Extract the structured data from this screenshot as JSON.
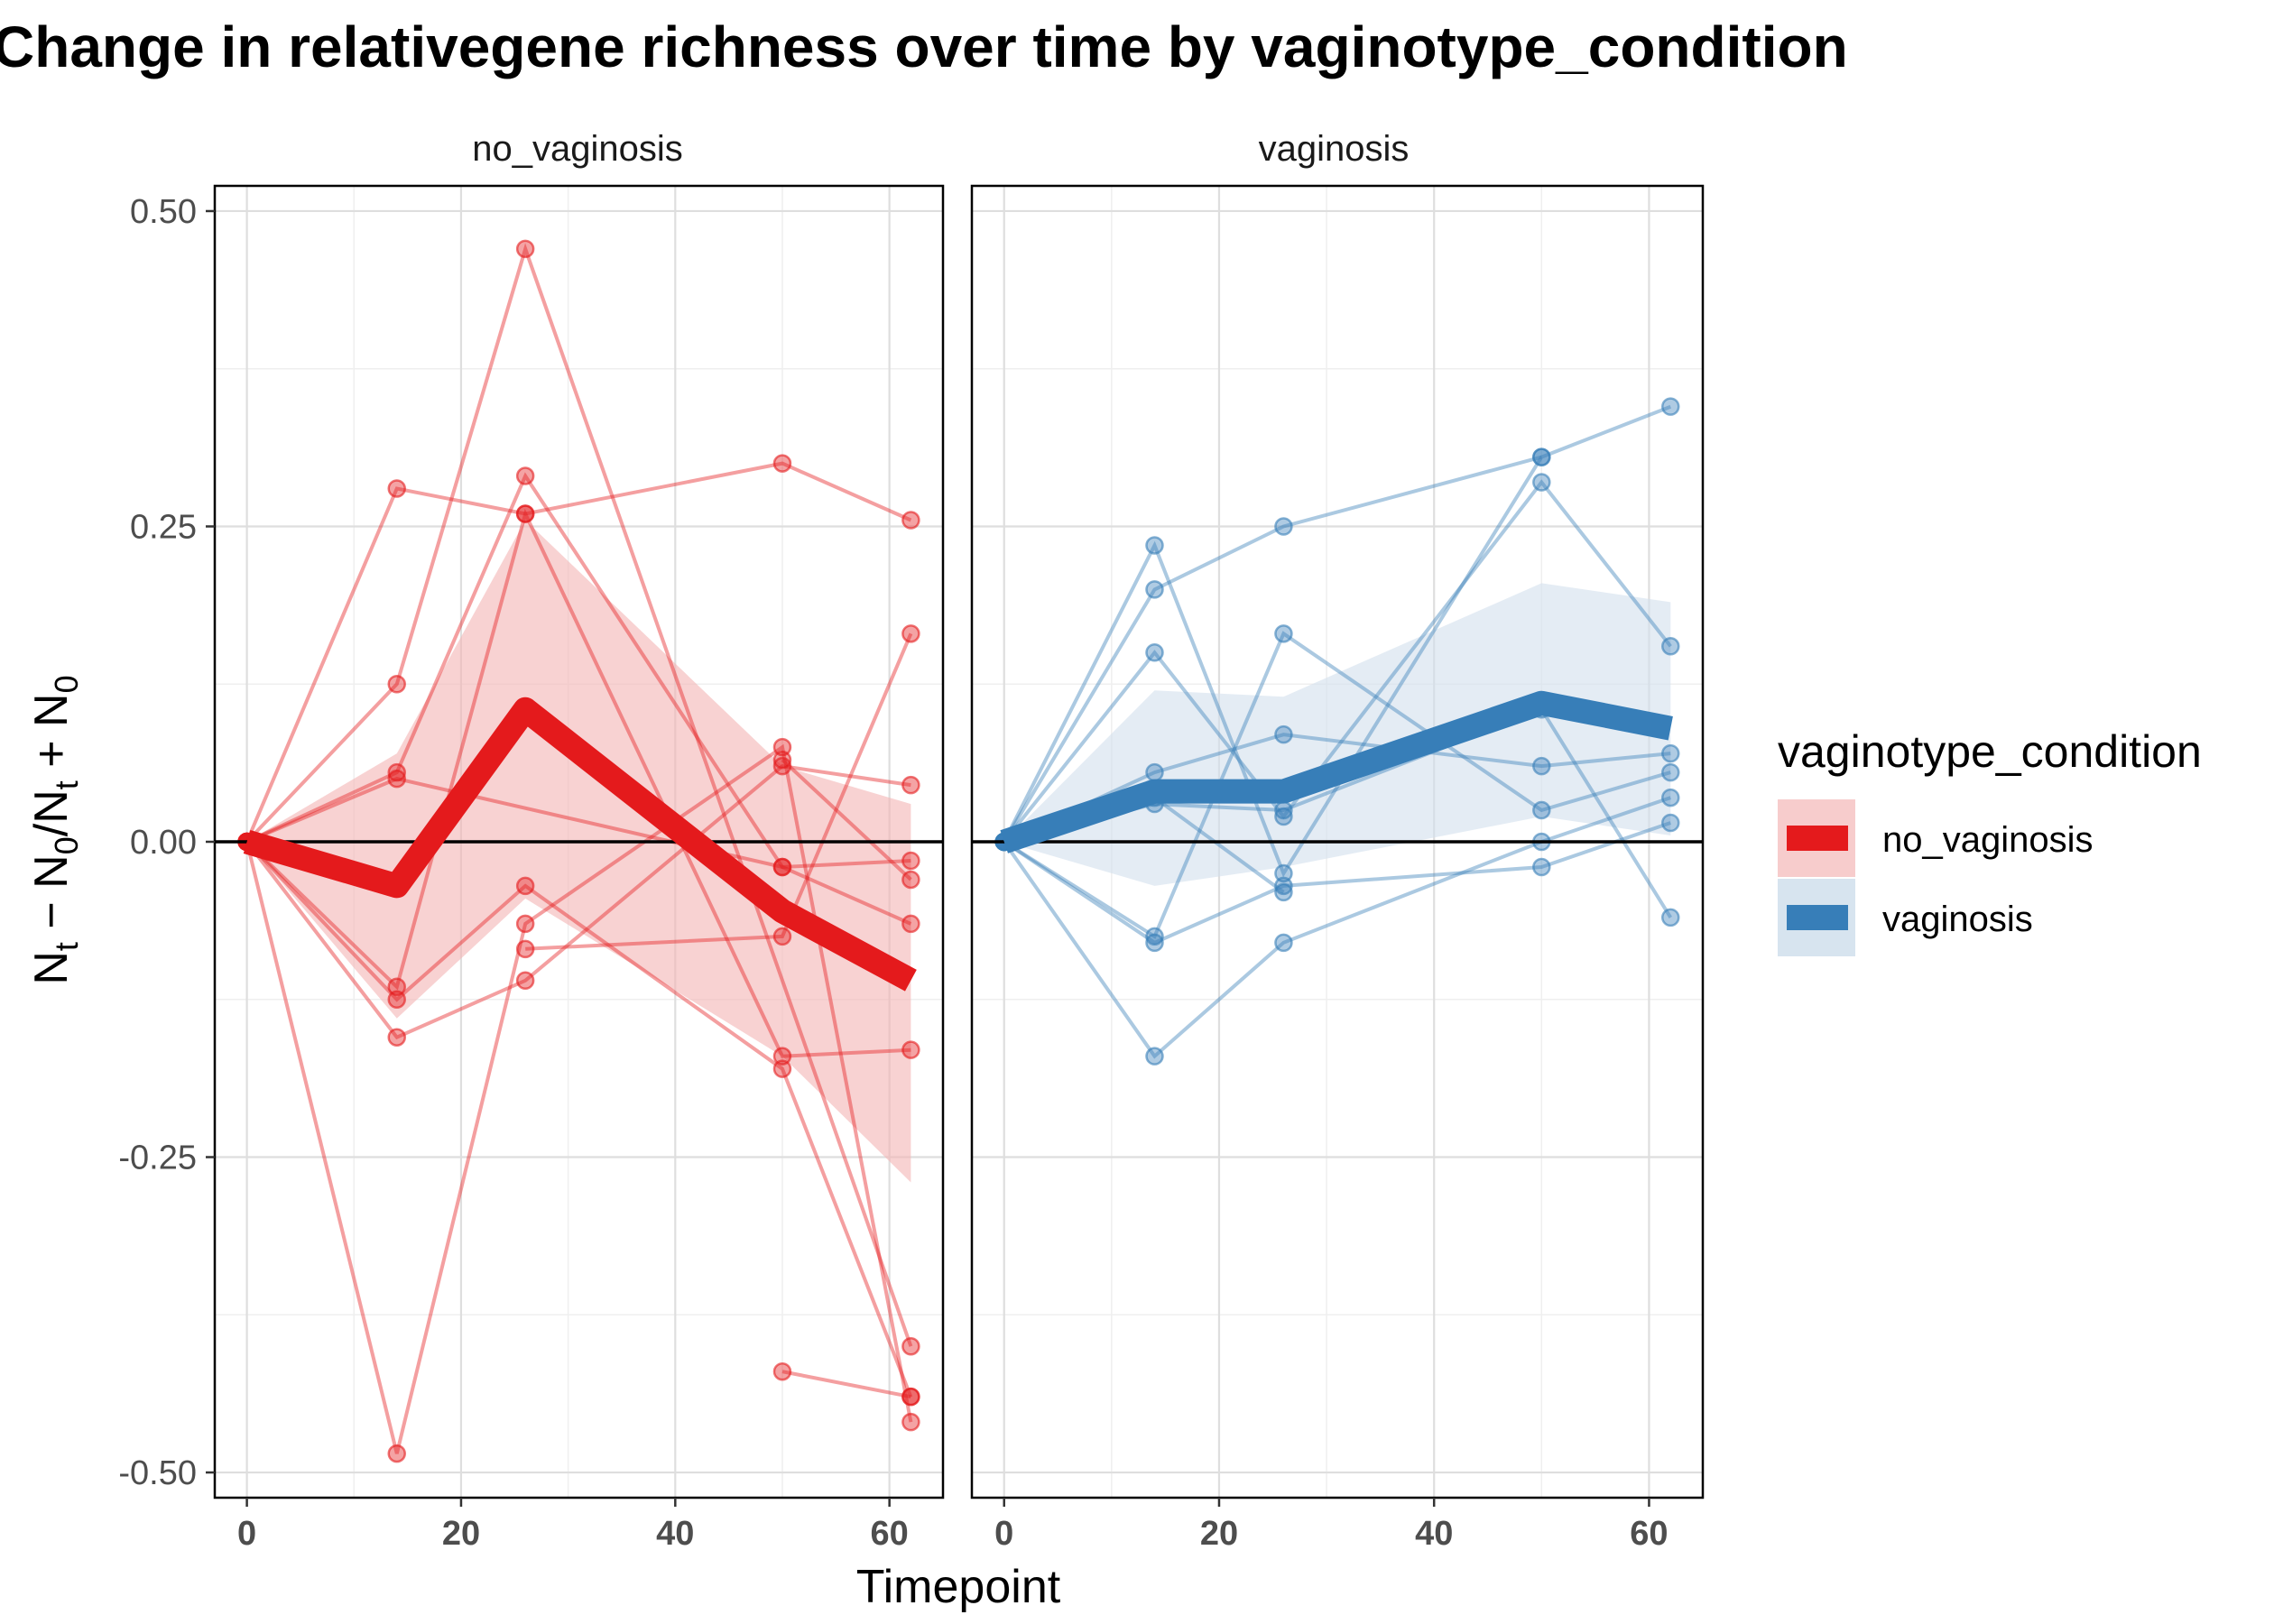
{
  "chart_data": {
    "type": "line",
    "title": "Change in relativegene richness over time by vaginotype_condition",
    "xlabel": "Timepoint",
    "ylabel": "Nt − N0/Nt + N0",
    "ylabel_parts": {
      "a": "N",
      "a_sub": "t",
      "op1": " − ",
      "b": "N",
      "b_sub": "0",
      "op2": "/",
      "c": "N",
      "c_sub": "t",
      "op3": " + ",
      "d": "N",
      "d_sub": "0"
    },
    "xlim": [
      -3,
      65
    ],
    "ylim": [
      -0.52,
      0.52
    ],
    "x_ticks": [
      0,
      20,
      40,
      60
    ],
    "x_tick_labels": [
      "0",
      "20",
      "40",
      "60"
    ],
    "y_ticks": [
      0.5,
      0.25,
      0.0,
      -0.25,
      -0.5
    ],
    "y_tick_labels": [
      "0.50",
      "0.25",
      "0.00",
      "-0.25",
      "-0.50"
    ],
    "reference_line_y": 0,
    "grid": true,
    "legend": {
      "title": "vaginotype_condition",
      "placement": "right",
      "entries": [
        {
          "label": "no_vaginosis",
          "color": "#E41A1C"
        },
        {
          "label": "vaginosis",
          "color": "#377EB8"
        }
      ]
    },
    "panels": [
      {
        "strip": "no_vaginosis",
        "color": "#E41A1C",
        "band_color": "#F4B6B7",
        "mean": {
          "x": [
            0,
            14,
            26,
            50,
            62
          ],
          "y": [
            0.0,
            -0.035,
            0.105,
            -0.055,
            -0.11
          ]
        },
        "ribbon": {
          "x": [
            0,
            14,
            26,
            50,
            62
          ],
          "upper": [
            0.0,
            0.07,
            0.255,
            0.06,
            0.03
          ],
          "lower": [
            0.0,
            -0.14,
            -0.045,
            -0.17,
            -0.27
          ]
        },
        "subjects": [
          {
            "x": [
              0,
              14,
              26,
              50,
              62
            ],
            "y": [
              0,
              0.28,
              0.26,
              0.3,
              0.255
            ]
          },
          {
            "x": [
              0,
              14,
              26,
              62
            ],
            "y": [
              0,
              0.125,
              0.47,
              -0.4
            ]
          },
          {
            "x": [
              0,
              14,
              26,
              50,
              62
            ],
            "y": [
              0,
              0.055,
              0.29,
              -0.02,
              -0.065
            ]
          },
          {
            "x": [
              0,
              14,
              50,
              62
            ],
            "y": [
              0,
              0.05,
              -0.02,
              -0.015
            ]
          },
          {
            "x": [
              0,
              14,
              26,
              50,
              62
            ],
            "y": [
              0,
              -0.115,
              0.26,
              -0.17,
              -0.165
            ]
          },
          {
            "x": [
              0,
              14,
              26,
              50,
              62
            ],
            "y": [
              0,
              -0.125,
              -0.035,
              -0.18,
              -0.44
            ]
          },
          {
            "x": [
              0,
              14,
              26,
              50,
              62
            ],
            "y": [
              0,
              -0.155,
              -0.11,
              0.06,
              0.045
            ]
          },
          {
            "x": [
              0,
              14,
              26,
              50,
              62
            ],
            "y": [
              0,
              -0.485,
              -0.065,
              0.075,
              -0.46
            ]
          },
          {
            "x": [
              26,
              50,
              62
            ],
            "y": [
              -0.085,
              -0.075,
              0.165
            ]
          },
          {
            "x": [
              50,
              62
            ],
            "y": [
              0.065,
              -0.03
            ]
          },
          {
            "x": [
              50,
              62
            ],
            "y": [
              -0.42,
              -0.44
            ]
          }
        ]
      },
      {
        "strip": "vaginosis",
        "color": "#377EB8",
        "band_color": "#D3E1ED",
        "mean": {
          "x": [
            0,
            14,
            26,
            50,
            62
          ],
          "y": [
            0.0,
            0.04,
            0.04,
            0.11,
            0.09
          ]
        },
        "ribbon": {
          "x": [
            0,
            14,
            26,
            50,
            62
          ],
          "upper": [
            0.0,
            0.12,
            0.115,
            0.205,
            0.19
          ],
          "lower": [
            0.0,
            -0.035,
            -0.02,
            0.02,
            0.005
          ]
        },
        "subjects": [
          {
            "x": [
              0,
              14,
              26,
              50,
              62
            ],
            "y": [
              0,
              0.235,
              -0.025,
              0.305,
              0.345
            ]
          },
          {
            "x": [
              0,
              14,
              26,
              50
            ],
            "y": [
              0,
              0.2,
              0.25,
              0.305
            ]
          },
          {
            "x": [
              0,
              14,
              26,
              50,
              62
            ],
            "y": [
              0,
              0.15,
              0.02,
              0.285,
              0.155
            ]
          },
          {
            "x": [
              0,
              14,
              26,
              50,
              62
            ],
            "y": [
              0,
              0.055,
              0.085,
              0.06,
              0.07
            ]
          },
          {
            "x": [
              0,
              14,
              26,
              50,
              62
            ],
            "y": [
              0,
              0.03,
              0.025,
              0.105,
              -0.06
            ]
          },
          {
            "x": [
              0,
              14,
              26,
              50,
              62
            ],
            "y": [
              0,
              -0.075,
              0.165,
              0.025,
              0.055
            ]
          },
          {
            "x": [
              0,
              14,
              26,
              50,
              62
            ],
            "y": [
              0,
              -0.08,
              -0.035,
              -0.02,
              0.015
            ]
          },
          {
            "x": [
              0,
              14,
              26,
              50,
              62
            ],
            "y": [
              0,
              -0.17,
              -0.08,
              0.0,
              0.035
            ]
          },
          {
            "x": [
              14,
              26
            ],
            "y": [
              0.035,
              -0.04
            ]
          }
        ]
      }
    ]
  }
}
